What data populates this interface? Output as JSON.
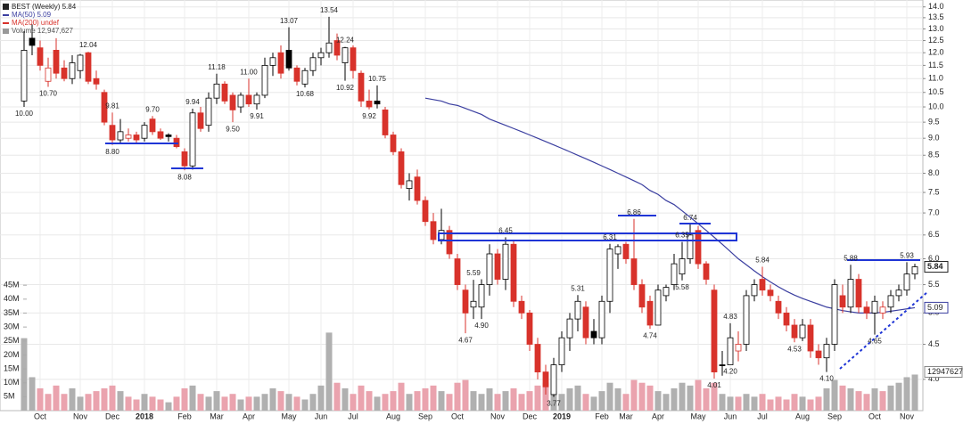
{
  "chart_data": {
    "type": "candlestick",
    "legend": [
      "BEST (Weekly) 5.84",
      "MA(50) 5.09",
      "MA(200) undef",
      "Volume 12,947,627"
    ],
    "price_box": "5.84",
    "ma_box": "5.09",
    "volume_box": "12947627",
    "log_scale": true,
    "grid": true,
    "up_color": "#ffffff",
    "down_color": "#d8322b",
    "hold_color": "#000000",
    "volume_up_color": "#b0b0b0",
    "volume_down_color": "#eaa3ae",
    "ma_color": "#3b3fa0",
    "categories": [
      null,
      null,
      "Oct",
      null,
      null,
      null,
      null,
      "Nov",
      null,
      null,
      null,
      "Dec",
      null,
      null,
      null,
      "2018",
      null,
      null,
      null,
      null,
      "Feb",
      null,
      null,
      null,
      "Mar",
      null,
      null,
      null,
      "Apr",
      null,
      null,
      null,
      null,
      "May",
      null,
      null,
      null,
      "Jun",
      null,
      null,
      null,
      "Jul",
      null,
      null,
      null,
      null,
      "Aug",
      null,
      null,
      null,
      "Sep",
      null,
      null,
      null,
      "Oct",
      null,
      null,
      null,
      null,
      "Nov",
      null,
      null,
      null,
      "Dec",
      null,
      null,
      null,
      "2019",
      null,
      null,
      null,
      null,
      "Feb",
      null,
      null,
      "Mar",
      null,
      null,
      null,
      "Apr",
      null,
      null,
      null,
      null,
      "May",
      null,
      null,
      null,
      "Jun",
      null,
      null,
      null,
      "Jul",
      null,
      null,
      null,
      null,
      "Aug",
      null,
      null,
      null,
      "Sep",
      null,
      null,
      null,
      null,
      "Oct",
      null,
      null,
      null,
      "Nov",
      null
    ],
    "ohlc": [
      [
        10.2,
        12.9,
        10.0,
        12.1
      ],
      [
        12.6,
        13.2,
        11.9,
        12.3
      ],
      [
        12.2,
        12.5,
        11.3,
        11.5
      ],
      [
        10.9,
        11.8,
        10.7,
        11.4
      ],
      [
        12.1,
        12.6,
        11.0,
        11.2
      ],
      [
        11.4,
        11.7,
        10.9,
        11.0
      ],
      [
        11.0,
        11.9,
        10.8,
        11.6
      ],
      [
        11.3,
        11.95,
        11.0,
        11.9
      ],
      [
        12.0,
        12.04,
        10.8,
        10.9
      ],
      [
        11.0,
        11.3,
        10.6,
        10.8
      ],
      [
        10.5,
        10.6,
        9.4,
        9.5
      ],
      [
        9.4,
        9.81,
        8.8,
        8.95
      ],
      [
        8.95,
        9.6,
        8.85,
        9.2
      ],
      [
        9.0,
        9.3,
        8.9,
        9.1
      ],
      [
        9.1,
        9.2,
        8.85,
        8.95
      ],
      [
        9.0,
        9.5,
        8.9,
        9.4
      ],
      [
        9.6,
        9.7,
        9.1,
        9.2
      ],
      [
        9.2,
        9.3,
        8.95,
        9.0
      ],
      [
        9.1,
        9.15,
        8.9,
        9.05
      ],
      [
        9.0,
        9.1,
        8.7,
        8.75
      ],
      [
        8.6,
        8.7,
        8.08,
        8.2
      ],
      [
        8.2,
        9.94,
        8.1,
        9.8
      ],
      [
        9.8,
        10.0,
        9.2,
        9.3
      ],
      [
        9.4,
        10.5,
        9.2,
        10.3
      ],
      [
        10.3,
        11.18,
        10.1,
        10.8
      ],
      [
        10.8,
        10.9,
        10.1,
        10.2
      ],
      [
        10.4,
        10.5,
        9.5,
        9.9
      ],
      [
        10.0,
        10.5,
        9.8,
        10.4
      ],
      [
        10.4,
        11.0,
        10.0,
        10.1
      ],
      [
        10.1,
        10.5,
        9.91,
        10.4
      ],
      [
        10.4,
        11.8,
        10.3,
        11.5
      ],
      [
        11.5,
        12.0,
        11.1,
        11.8
      ],
      [
        12.0,
        12.3,
        11.0,
        11.2
      ],
      [
        12.1,
        13.07,
        11.3,
        11.4
      ],
      [
        11.4,
        11.5,
        10.75,
        10.9
      ],
      [
        10.8,
        11.4,
        10.68,
        11.3
      ],
      [
        11.3,
        12.0,
        11.1,
        11.8
      ],
      [
        11.8,
        12.2,
        11.5,
        12.0
      ],
      [
        12.0,
        13.54,
        11.8,
        12.4
      ],
      [
        12.5,
        12.8,
        11.7,
        11.9
      ],
      [
        11.6,
        12.24,
        10.92,
        12.2
      ],
      [
        12.2,
        12.3,
        11.0,
        11.3
      ],
      [
        11.2,
        11.3,
        10.0,
        10.2
      ],
      [
        10.2,
        10.6,
        9.92,
        10.0
      ],
      [
        10.2,
        10.75,
        9.95,
        10.1
      ],
      [
        9.9,
        10.0,
        9.0,
        9.1
      ],
      [
        9.1,
        9.2,
        8.5,
        8.6
      ],
      [
        8.6,
        8.7,
        7.6,
        7.7
      ],
      [
        7.6,
        8.0,
        7.3,
        7.8
      ],
      [
        7.9,
        8.1,
        7.2,
        7.3
      ],
      [
        7.3,
        7.4,
        6.7,
        6.8
      ],
      [
        6.8,
        7.0,
        6.3,
        6.4
      ],
      [
        6.4,
        7.1,
        6.3,
        6.6
      ],
      [
        6.6,
        6.7,
        6.0,
        6.1
      ],
      [
        6.0,
        6.1,
        5.4,
        5.5
      ],
      [
        5.4,
        5.5,
        4.67,
        5.0
      ],
      [
        5.1,
        5.59,
        4.9,
        5.2
      ],
      [
        5.1,
        5.6,
        4.9,
        5.5
      ],
      [
        5.5,
        6.3,
        5.3,
        6.1
      ],
      [
        6.1,
        6.2,
        5.5,
        5.6
      ],
      [
        5.6,
        6.45,
        5.4,
        6.3
      ],
      [
        6.3,
        6.4,
        5.1,
        5.2
      ],
      [
        5.2,
        5.3,
        4.9,
        5.0
      ],
      [
        5.0,
        5.05,
        4.4,
        4.5
      ],
      [
        4.5,
        4.6,
        4.0,
        4.1
      ],
      [
        4.1,
        4.2,
        3.8,
        3.9
      ],
      [
        3.8,
        4.3,
        3.77,
        4.2
      ],
      [
        4.2,
        4.7,
        4.1,
        4.6
      ],
      [
        4.6,
        5.0,
        4.4,
        4.9
      ],
      [
        4.9,
        5.31,
        4.7,
        5.2
      ],
      [
        5.1,
        5.2,
        4.5,
        4.6
      ],
      [
        4.7,
        4.9,
        4.5,
        4.6
      ],
      [
        4.6,
        5.3,
        4.5,
        5.2
      ],
      [
        5.2,
        6.31,
        5.0,
        6.2
      ],
      [
        6.1,
        6.3,
        5.8,
        6.25
      ],
      [
        6.3,
        6.35,
        5.9,
        6.0
      ],
      [
        6.0,
        6.86,
        5.4,
        5.5
      ],
      [
        5.5,
        5.6,
        5.0,
        5.1
      ],
      [
        5.2,
        5.3,
        4.74,
        4.8
      ],
      [
        4.8,
        5.5,
        4.8,
        5.4
      ],
      [
        5.3,
        5.5,
        5.2,
        5.45
      ],
      [
        5.5,
        6.1,
        5.4,
        5.9
      ],
      [
        5.7,
        6.35,
        5.58,
        6.0
      ],
      [
        6.0,
        6.74,
        5.9,
        6.5
      ],
      [
        6.6,
        6.7,
        5.8,
        5.9
      ],
      [
        5.9,
        5.95,
        5.5,
        5.6
      ],
      [
        5.4,
        5.5,
        4.01,
        4.1
      ],
      [
        4.2,
        4.4,
        4.05,
        4.2
      ],
      [
        4.2,
        4.83,
        4.2,
        4.6
      ],
      [
        4.4,
        4.7,
        4.25,
        4.5
      ],
      [
        4.5,
        5.4,
        4.4,
        5.3
      ],
      [
        5.3,
        5.6,
        5.2,
        5.5
      ],
      [
        5.6,
        5.84,
        5.3,
        5.4
      ],
      [
        5.4,
        5.5,
        5.2,
        5.3
      ],
      [
        5.2,
        5.3,
        4.9,
        5.0
      ],
      [
        5.0,
        5.1,
        4.7,
        4.8
      ],
      [
        4.8,
        4.9,
        4.53,
        4.6
      ],
      [
        4.6,
        4.9,
        4.55,
        4.8
      ],
      [
        4.8,
        4.9,
        4.3,
        4.4
      ],
      [
        4.4,
        4.5,
        4.2,
        4.3
      ],
      [
        4.3,
        4.6,
        4.1,
        4.5
      ],
      [
        4.5,
        5.6,
        4.4,
        5.5
      ],
      [
        5.3,
        5.5,
        5.0,
        5.1
      ],
      [
        5.1,
        5.88,
        5.0,
        5.6
      ],
      [
        5.6,
        5.7,
        5.0,
        5.1
      ],
      [
        5.1,
        5.2,
        4.9,
        5.0
      ],
      [
        5.0,
        5.3,
        4.65,
        5.2
      ],
      [
        5.0,
        5.2,
        4.9,
        5.1
      ],
      [
        5.1,
        5.4,
        5.0,
        5.3
      ],
      [
        5.3,
        5.5,
        5.2,
        5.4
      ],
      [
        5.4,
        5.93,
        5.3,
        5.7
      ],
      [
        5.7,
        5.9,
        5.6,
        5.84
      ]
    ],
    "high_value_labels": [
      null,
      null,
      null,
      null,
      null,
      null,
      null,
      null,
      "12.04",
      null,
      null,
      "9.81",
      null,
      null,
      null,
      null,
      "9.70",
      null,
      null,
      null,
      null,
      "9.94",
      null,
      null,
      "11.18",
      null,
      null,
      null,
      "11.00",
      null,
      null,
      null,
      null,
      "13.07",
      null,
      null,
      null,
      null,
      "13.54",
      null,
      "12.24",
      null,
      null,
      null,
      "10.75",
      null,
      null,
      null,
      null,
      null,
      null,
      null,
      null,
      null,
      null,
      null,
      "5.59",
      null,
      null,
      null,
      "6.45",
      null,
      null,
      null,
      null,
      null,
      null,
      null,
      null,
      "5.31",
      null,
      null,
      null,
      "6.31",
      null,
      null,
      "6.86",
      null,
      null,
      null,
      null,
      null,
      "6.35",
      "6.74",
      null,
      null,
      null,
      null,
      "4.83",
      null,
      null,
      null,
      "5.84",
      null,
      null,
      null,
      null,
      null,
      null,
      null,
      null,
      null,
      null,
      "5.88",
      null,
      null,
      null,
      null,
      null,
      null,
      "5.93",
      null
    ],
    "low_value_labels": [
      "10.00",
      null,
      null,
      "10.70",
      null,
      null,
      null,
      null,
      null,
      null,
      null,
      "8.80",
      null,
      null,
      null,
      null,
      null,
      null,
      null,
      null,
      "8.08",
      null,
      null,
      null,
      null,
      null,
      "9.50",
      null,
      null,
      "9.91",
      null,
      null,
      null,
      null,
      null,
      "10.68",
      null,
      null,
      null,
      null,
      "10.92",
      null,
      null,
      "9.92",
      null,
      null,
      null,
      null,
      null,
      null,
      null,
      null,
      null,
      null,
      null,
      "4.67",
      null,
      "4.90",
      null,
      null,
      null,
      null,
      null,
      null,
      null,
      null,
      "3.77",
      null,
      null,
      null,
      null,
      null,
      null,
      null,
      null,
      null,
      null,
      null,
      "4.74",
      null,
      null,
      null,
      "5.58",
      null,
      null,
      null,
      "4.01",
      null,
      "4.20",
      null,
      null,
      null,
      null,
      null,
      null,
      null,
      "4.53",
      null,
      null,
      null,
      "4.10",
      null,
      null,
      null,
      null,
      null,
      "4.65",
      null,
      null,
      null,
      null,
      null
    ],
    "ma50": [
      null,
      null,
      null,
      null,
      null,
      null,
      null,
      null,
      null,
      null,
      null,
      null,
      null,
      null,
      null,
      null,
      null,
      null,
      null,
      null,
      null,
      null,
      null,
      null,
      null,
      null,
      null,
      null,
      null,
      null,
      null,
      null,
      null,
      null,
      null,
      null,
      null,
      null,
      null,
      null,
      null,
      null,
      null,
      null,
      null,
      null,
      null,
      null,
      null,
      null,
      10.3,
      10.25,
      10.2,
      10.1,
      10.05,
      9.95,
      9.85,
      9.75,
      9.6,
      9.5,
      9.4,
      9.3,
      9.2,
      9.1,
      9.0,
      8.9,
      8.8,
      8.7,
      8.6,
      8.5,
      8.4,
      8.3,
      8.2,
      8.1,
      8.0,
      7.9,
      7.8,
      7.7,
      7.55,
      7.45,
      7.3,
      7.2,
      7.05,
      6.9,
      6.75,
      6.6,
      6.45,
      6.3,
      6.15,
      6.0,
      5.88,
      5.76,
      5.65,
      5.55,
      5.46,
      5.38,
      5.31,
      5.25,
      5.2,
      5.15,
      5.1,
      5.07,
      5.04,
      5.02,
      5.0,
      5.0,
      5.0,
      5.01,
      5.03,
      5.05,
      5.07,
      5.09
    ],
    "volume": [
      26,
      12,
      8,
      6,
      9,
      6,
      8,
      5,
      6,
      7,
      8,
      9,
      7,
      5,
      4,
      6,
      5,
      4,
      3,
      5,
      8,
      9,
      6,
      5,
      7,
      5,
      6,
      4,
      5,
      5,
      6,
      8,
      7,
      6,
      5,
      4,
      6,
      9,
      28,
      10,
      8,
      6,
      9,
      7,
      5,
      6,
      7,
      10,
      6,
      7,
      8,
      9,
      7,
      6,
      10,
      11,
      7,
      6,
      8,
      6,
      7,
      8,
      6,
      7,
      9,
      10,
      7,
      6,
      8,
      9,
      6,
      5,
      7,
      10,
      8,
      6,
      11,
      10,
      9,
      7,
      6,
      8,
      10,
      9,
      11,
      8,
      10,
      6,
      5,
      5,
      6,
      5,
      6,
      4,
      5,
      4,
      6,
      5,
      4,
      5,
      8,
      11,
      9,
      8,
      7,
      6,
      8,
      7,
      9,
      10,
      12,
      12.947627
    ],
    "ylim": [
      3.6,
      14.2
    ],
    "yticks": [
      {
        "value": 4,
        "label": "4.0"
      },
      4.5,
      {
        "value": 5,
        "label": "5.0"
      },
      5.5,
      {
        "value": 6,
        "label": "6.0"
      },
      6.5,
      {
        "value": 7,
        "label": "7.0"
      },
      7.5,
      {
        "value": 8,
        "label": "8.0"
      },
      8.5,
      {
        "value": 9,
        "label": "9.0"
      },
      9.5,
      {
        "value": 10,
        "label": "10.0"
      },
      10.5,
      {
        "value": 11,
        "label": "11.0"
      },
      11.5,
      {
        "value": 12,
        "label": "12.0"
      },
      12.5,
      {
        "value": 13,
        "label": "13.0"
      },
      13.5,
      {
        "value": 14,
        "label": "14.0"
      }
    ],
    "vlim": [
      0,
      147
    ],
    "vticks": [
      {
        "value": 5,
        "label": "5M"
      },
      {
        "value": 10,
        "label": "10M"
      },
      {
        "value": 15,
        "label": "15M"
      },
      {
        "value": 20,
        "label": "20M"
      },
      {
        "value": 25,
        "label": "25M"
      },
      {
        "value": 30,
        "label": "30M"
      },
      {
        "value": 35,
        "label": "35M"
      },
      {
        "value": 40,
        "label": "40M"
      },
      {
        "value": 45,
        "label": "45M"
      }
    ]
  }
}
